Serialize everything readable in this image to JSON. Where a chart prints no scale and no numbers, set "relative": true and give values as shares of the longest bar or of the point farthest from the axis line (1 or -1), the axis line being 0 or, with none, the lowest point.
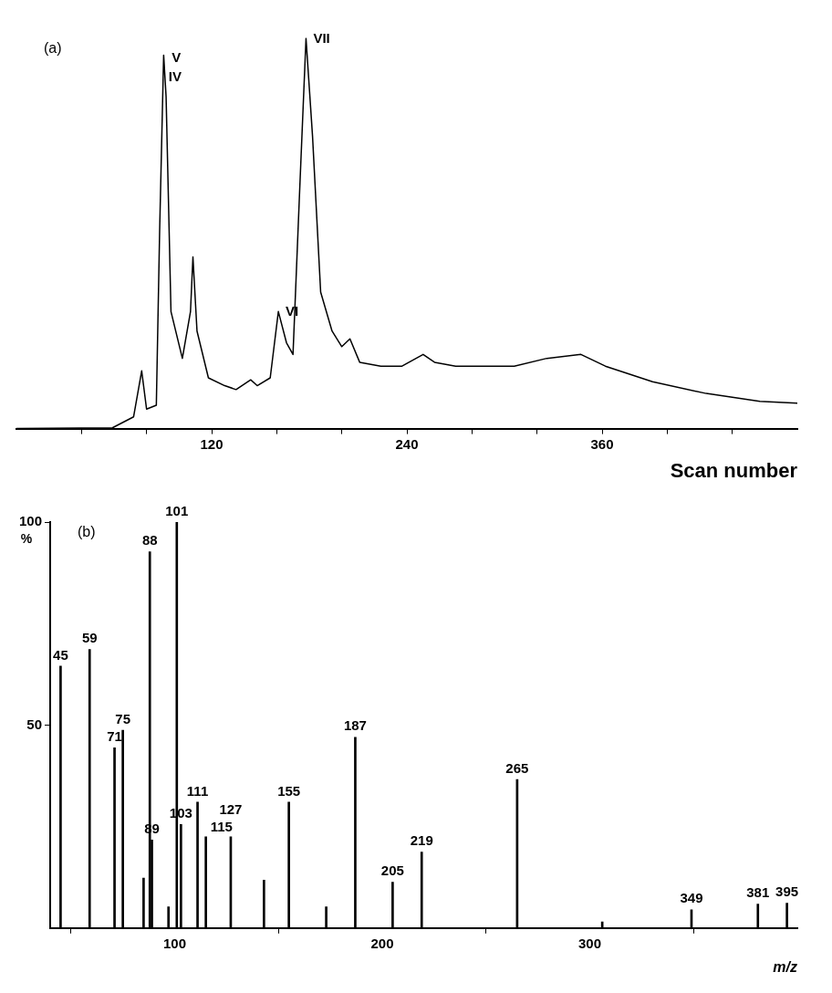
{
  "chart_data": [
    {
      "type": "line",
      "relative": true,
      "xlabel": "Scan number",
      "xlim": [
        0,
        480
      ],
      "xticks": [
        {
          "value": 40,
          "label": null
        },
        {
          "value": 80,
          "label": null
        },
        120,
        {
          "value": 160,
          "label": null
        },
        {
          "value": 200,
          "label": null
        },
        240,
        {
          "value": 280,
          "label": null
        },
        {
          "value": 320,
          "label": null
        },
        360,
        {
          "value": 400,
          "label": null
        },
        {
          "value": 440,
          "label": null
        }
      ],
      "series": [
        {
          "color": "#000000",
          "x": [
            0,
            59,
            72,
            77,
            80,
            86,
            88,
            90.5,
            92,
            95,
            102,
            107,
            108.5,
            111,
            118,
            128,
            135,
            144,
            148,
            156,
            161,
            166,
            170,
            174,
            178,
            182,
            187,
            194,
            200,
            205,
            211,
            224,
            237,
            250,
            257,
            270,
            283,
            306,
            326,
            347,
            362,
            391,
            424,
            457,
            480
          ],
          "values": [
            0,
            0.002,
            0.03,
            0.148,
            0.05,
            0.06,
            0.5,
            0.957,
            0.85,
            0.3,
            0.18,
            0.3,
            0.44,
            0.25,
            0.13,
            0.11,
            0.1,
            0.125,
            0.11,
            0.13,
            0.3,
            0.22,
            0.19,
            0.6,
            1.0,
            0.75,
            0.35,
            0.25,
            0.21,
            0.23,
            0.17,
            0.16,
            0.16,
            0.19,
            0.17,
            0.16,
            0.16,
            0.16,
            0.18,
            0.19,
            0.16,
            0.12,
            0.09,
            0.07,
            0.065
          ]
        }
      ],
      "annotations": [
        "(a)",
        {
          "text": "IV",
          "x": 89,
          "y": 0.9
        },
        {
          "text": "V",
          "x": 91,
          "y": 0.95
        },
        {
          "text": "VI",
          "x": 161,
          "y": 0.3
        },
        {
          "text": "VII",
          "x": 178,
          "y": 1.0
        }
      ]
    },
    {
      "type": "bar",
      "xlabel": "m/z",
      "ylabel": "%",
      "xlim": [
        40,
        400
      ],
      "xticks": [
        100,
        200,
        300
      ],
      "ylim": [
        0,
        100
      ],
      "yticks": [
        50,
        100
      ],
      "series": [
        {
          "color": "#000000",
          "x": [
            45,
            59,
            71,
            75,
            85,
            88,
            89,
            97,
            101,
            103,
            111,
            115,
            127,
            143,
            155,
            173,
            187,
            205,
            219,
            265,
            306,
            349,
            381,
            395
          ],
          "values": [
            64.5,
            68.6,
            44.4,
            48.7,
            12.3,
            92.7,
            21.7,
            5.2,
            100,
            25.5,
            31,
            22.5,
            22.5,
            11.8,
            31,
            5.2,
            47,
            11.3,
            18.7,
            36.6,
            1.5,
            4.5,
            5.9,
            6.1
          ]
        }
      ],
      "annotations": [
        "(b)",
        {
          "text": "45",
          "x": 45,
          "y": 64.5
        },
        {
          "text": "59",
          "x": 59,
          "y": 68.6
        },
        {
          "text": "71",
          "x": 71,
          "y": 44.4
        },
        {
          "text": "75",
          "x": 75,
          "y": 48.7
        },
        {
          "text": "88",
          "x": 88,
          "y": 92.7
        },
        {
          "text": "89",
          "x": 89,
          "y": 21.7
        },
        {
          "text": "101",
          "x": 101,
          "y": 100
        },
        {
          "text": "103",
          "x": 103,
          "y": 25.5
        },
        {
          "text": "111",
          "x": 111,
          "y": 31
        },
        {
          "text": "115",
          "x": 115,
          "y": 22.5
        },
        {
          "text": "127",
          "x": 127,
          "y": 22.5
        },
        {
          "text": "155",
          "x": 155,
          "y": 31
        },
        {
          "text": "187",
          "x": 187,
          "y": 47
        },
        {
          "text": "205",
          "x": 205,
          "y": 11.3
        },
        {
          "text": "219",
          "x": 219,
          "y": 18.7
        },
        {
          "text": "265",
          "x": 265,
          "y": 36.6
        },
        {
          "text": "349",
          "x": 349,
          "y": 4.5
        },
        {
          "text": "381",
          "x": 381,
          "y": 5.9
        },
        {
          "text": "395",
          "x": 395,
          "y": 6.1
        }
      ]
    }
  ]
}
